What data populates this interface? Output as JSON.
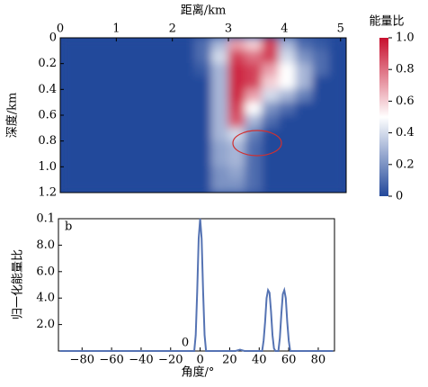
{
  "chart_data": [
    {
      "type": "heatmap",
      "x_label": "距离/km",
      "y_label": "深度/km",
      "colorbar_label": "能量比",
      "x": [
        0.15,
        0.45,
        0.75,
        1.05,
        1.35,
        1.65,
        1.95,
        2.25,
        2.55,
        2.85,
        3.15,
        3.45,
        3.75,
        4.05,
        4.35,
        4.65,
        4.95
      ],
      "y": [
        0.05,
        0.15,
        0.25,
        0.35,
        0.45,
        0.55,
        0.65,
        0.75,
        0.85,
        0.95,
        1.05,
        1.15
      ],
      "z": [
        [
          0,
          0,
          0,
          0,
          0,
          0,
          0,
          0,
          0.1,
          0.3,
          0.7,
          0.6,
          0.9,
          0.3,
          0.1,
          0.05,
          0
        ],
        [
          0,
          0,
          0,
          0,
          0,
          0,
          0,
          0,
          0.1,
          0.4,
          0.9,
          0.8,
          0.9,
          0.4,
          0.2,
          0.1,
          0
        ],
        [
          0,
          0,
          0,
          0,
          0,
          0,
          0,
          0,
          0.05,
          0.3,
          0.95,
          0.9,
          0.7,
          0.5,
          0.3,
          0.1,
          0
        ],
        [
          0,
          0,
          0,
          0,
          0,
          0,
          0,
          0,
          0,
          0.3,
          0.95,
          0.9,
          0.6,
          0.5,
          0.3,
          0,
          0
        ],
        [
          0,
          0,
          0,
          0,
          0,
          0,
          0,
          0,
          0,
          0.3,
          0.95,
          0.7,
          0.4,
          0.3,
          0.15,
          0,
          0
        ],
        [
          0,
          0,
          0,
          0,
          0,
          0,
          0,
          0,
          0,
          0.3,
          0.9,
          0.5,
          0.2,
          0.1,
          0,
          0,
          0
        ],
        [
          0,
          0,
          0,
          0,
          0,
          0,
          0,
          0,
          0,
          0.3,
          0.85,
          0.3,
          0.1,
          0,
          0,
          0,
          0
        ],
        [
          0,
          0,
          0,
          0,
          0,
          0,
          0,
          0,
          0,
          0.3,
          0.4,
          0.15,
          0,
          0,
          0,
          0,
          0
        ],
        [
          0,
          0,
          0,
          0,
          0,
          0,
          0,
          0,
          0,
          0.25,
          0.3,
          0.1,
          0,
          0,
          0,
          0,
          0
        ],
        [
          0,
          0,
          0,
          0,
          0,
          0,
          0,
          0,
          0,
          0.25,
          0.3,
          0.1,
          0,
          0,
          0,
          0,
          0
        ],
        [
          0,
          0,
          0,
          0,
          0,
          0,
          0,
          0,
          0,
          0.2,
          0.25,
          0.1,
          0,
          0,
          0,
          0,
          0
        ],
        [
          0,
          0,
          0,
          0,
          0,
          0,
          0,
          0,
          0,
          0.2,
          0.2,
          0.1,
          0,
          0,
          0,
          0,
          0
        ]
      ],
      "xlim": [
        0,
        5.1
      ],
      "xticks": [
        0,
        1,
        2,
        3,
        4,
        5
      ],
      "ylim": [
        0,
        1.2
      ],
      "y_inverted": true,
      "yticks": [
        0,
        0.2,
        0.4,
        0.6,
        0.8,
        {
          "value": 1,
          "label": "1.0"
        },
        1.2
      ],
      "clim": [
        0,
        1
      ],
      "cticks": [
        0,
        0.2,
        0.4,
        0.6,
        0.8,
        {
          "value": 1,
          "label": "1.0"
        }
      ],
      "colormap": [
        "#23499b",
        "#ffffff",
        "#c8102e"
      ]
    },
    {
      "type": "line",
      "panel_label": "b",
      "annotation": "0",
      "x_label": "角度/°",
      "y_label": "归一化能量比",
      "x": [
        -95,
        -10,
        -5,
        -4,
        -3,
        -2,
        -1,
        0,
        1,
        2,
        3,
        4,
        5,
        10,
        24,
        27,
        30,
        40,
        42,
        43,
        44,
        45,
        46,
        47,
        48,
        49,
        50,
        51,
        52,
        53,
        54,
        55,
        56,
        57,
        58,
        59,
        60,
        61,
        63,
        70,
        90
      ],
      "series": [
        {
          "color": "#5573b3",
          "values": [
            0,
            0,
            0,
            0,
            0.012,
            0.045,
            0.085,
            0.1,
            0.085,
            0.045,
            0.012,
            0,
            0,
            0,
            0,
            0.001,
            0,
            0,
            0,
            0.008,
            0.022,
            0.04,
            0.046,
            0.044,
            0.03,
            0.012,
            0.002,
            0,
            0,
            0,
            0.01,
            0.028,
            0.043,
            0.046,
            0.04,
            0.022,
            0.008,
            0,
            0,
            0,
            0
          ]
        }
      ],
      "xlim": [
        -96,
        91
      ],
      "xticks": [
        {
          "value": -80,
          "label": "−80"
        },
        {
          "value": -60,
          "label": "−60"
        },
        {
          "value": -40,
          "label": "−40"
        },
        {
          "value": -20,
          "label": "−20"
        },
        0,
        20,
        40,
        60,
        80
      ],
      "ylim": [
        0,
        0.1
      ],
      "yticks": [
        {
          "value": 0.02,
          "label": "2.0"
        },
        {
          "value": 0.04,
          "label": "4.0"
        },
        {
          "value": 0.06,
          "label": "6.0"
        },
        {
          "value": 0.08,
          "label": "8.0"
        },
        0.1
      ]
    }
  ]
}
